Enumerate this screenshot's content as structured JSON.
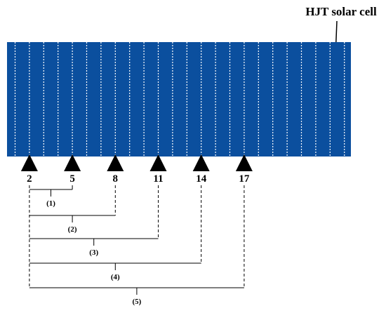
{
  "title": "HJT solar cell",
  "markers": [
    "2",
    "5",
    "8",
    "11",
    "14",
    "17"
  ],
  "brackets": [
    "(1)",
    "(2)",
    "(3)",
    "(4)",
    "(5)"
  ]
}
